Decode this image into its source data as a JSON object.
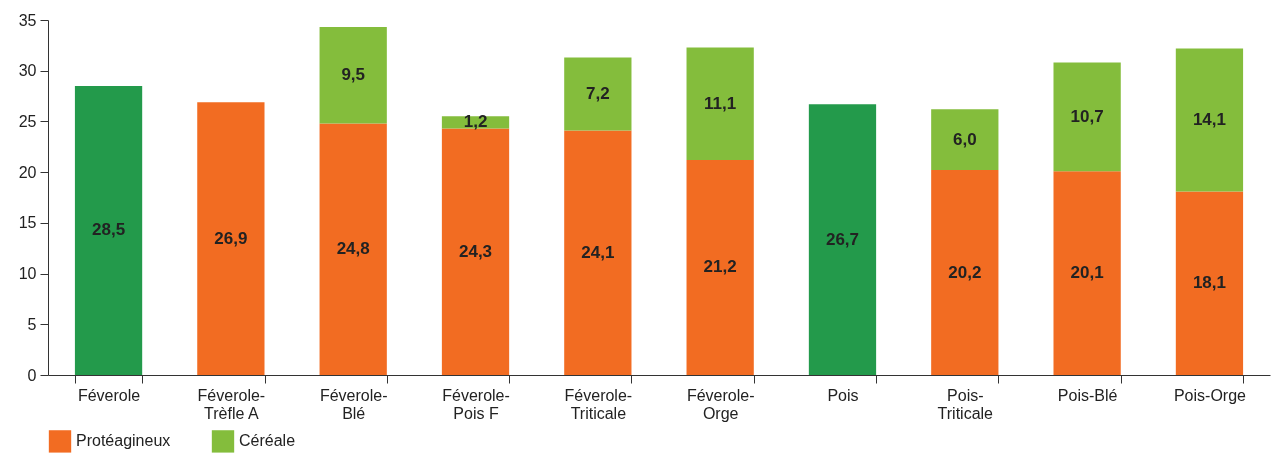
{
  "chart_data": {
    "type": "bar",
    "stacked": true,
    "categories": [
      "Féverole",
      "Féverole-\nTrèfle A",
      "Féverole-\nBlé",
      "Féverole-\nPois F",
      "Féverole-\nTriticale",
      "Féverole-\nOrge",
      "Pois",
      "Pois-\nTriticale",
      "Pois-Blé",
      "Pois-Orge"
    ],
    "series": [
      {
        "name": "Protéagineux",
        "color": "#f26c22",
        "colors": [
          "#239a4b",
          "#f26c22",
          "#f26c22",
          "#f26c22",
          "#f26c22",
          "#f26c22",
          "#239a4b",
          "#f26c22",
          "#f26c22",
          "#f26c22"
        ],
        "values": [
          28.5,
          26.9,
          24.8,
          24.3,
          24.1,
          21.2,
          26.7,
          20.2,
          20.1,
          18.1
        ],
        "value_labels": [
          "28,5",
          "26,9",
          "24,8",
          "24,3",
          "24,1",
          "21,2",
          "26,7",
          "20,2",
          "20,1",
          "18,1"
        ]
      },
      {
        "name": "Céréale",
        "color": "#84bd3c",
        "values": [
          null,
          null,
          9.5,
          1.2,
          7.2,
          11.1,
          null,
          6.0,
          10.7,
          14.1
        ],
        "value_labels": [
          null,
          null,
          "9,5",
          "1,2",
          "7,2",
          "11,1",
          null,
          "6,0",
          "10,7",
          "14,1"
        ]
      }
    ],
    "ylim": [
      0,
      35
    ],
    "yticks": [
      0,
      5,
      10,
      15,
      20,
      25,
      30,
      35
    ],
    "grid": false,
    "legend": "bottom"
  }
}
